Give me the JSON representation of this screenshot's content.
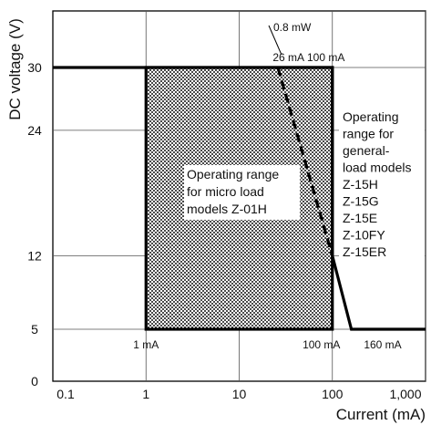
{
  "chart_data": {
    "type": "area",
    "xlabel": "Current (mA)",
    "ylabel": "DC voltage (V)",
    "x_scale": "log",
    "xlim": [
      0.1,
      1000
    ],
    "ylim": [
      0,
      35
    ],
    "grid": true,
    "x_ticks": [
      {
        "value": 0.1,
        "label": "0.1"
      },
      {
        "value": 1,
        "label": "1"
      },
      {
        "value": 10,
        "label": "10"
      },
      {
        "value": 100,
        "label": "100"
      },
      {
        "value": 1000,
        "label": "1,000"
      }
    ],
    "y_ticks": [
      {
        "value": 0,
        "label": "0"
      },
      {
        "value": 5,
        "label": "5"
      },
      {
        "value": 12,
        "label": "12"
      },
      {
        "value": 24,
        "label": "24"
      },
      {
        "value": 30,
        "label": "30"
      }
    ],
    "regions": [
      {
        "name": "micro-load",
        "label_lines": [
          "Operating range",
          "for micro load",
          "models Z-01H"
        ],
        "x_range": [
          1,
          100
        ],
        "y_range": [
          5,
          30
        ],
        "fill": "stippled"
      },
      {
        "name": "general-load",
        "label_lines": [
          "Operating",
          "range for",
          "general-",
          "load models",
          "Z-15H",
          "Z-15G",
          "Z-15E",
          "Z-10FY",
          "Z-15ER"
        ],
        "boundary": [
          [
            0.1,
            30
          ],
          [
            100,
            30
          ],
          [
            100,
            12
          ],
          [
            160,
            5
          ],
          [
            1000,
            5
          ]
        ]
      }
    ],
    "curves": [
      {
        "name": "power-limit",
        "label": "0.8 mW",
        "style": "dashed",
        "points": [
          [
            26,
            30
          ],
          [
            100,
            12
          ]
        ]
      }
    ],
    "annotations": [
      {
        "name": "26ma",
        "text": "26 mA",
        "x": 26,
        "y": 30
      },
      {
        "name": "100ma-top",
        "text": "100 mA",
        "x": 100,
        "y": 30
      },
      {
        "name": "1ma",
        "text": "1 mA",
        "x": 1,
        "y": 5
      },
      {
        "name": "100ma-bottom",
        "text": "100 mA",
        "x": 100,
        "y": 5
      },
      {
        "name": "160ma",
        "text": "160 mA",
        "x": 160,
        "y": 5
      }
    ]
  }
}
